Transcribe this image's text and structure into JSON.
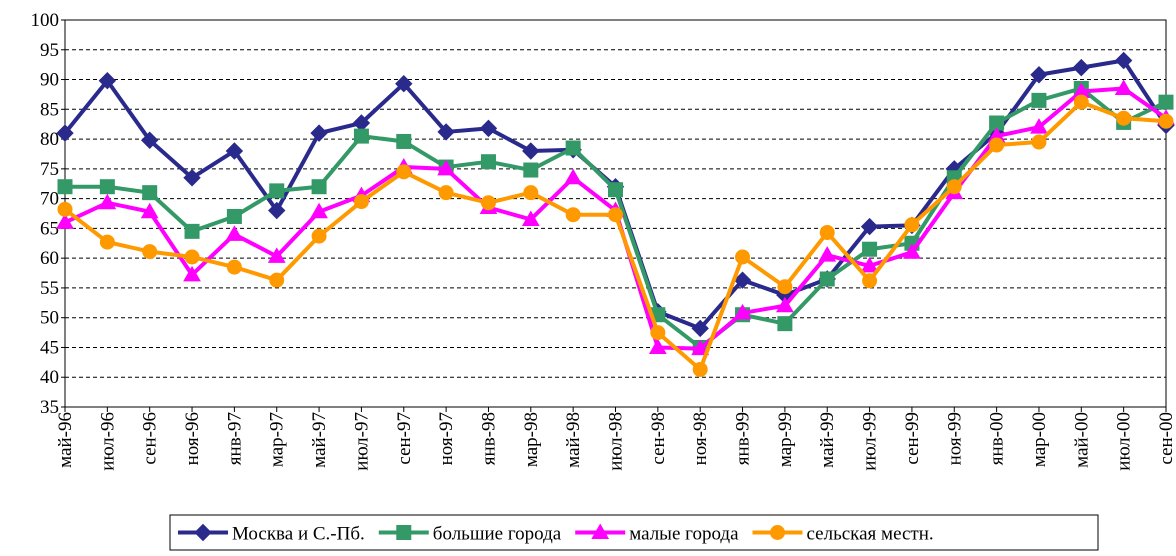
{
  "chart_data": {
    "type": "line",
    "categories": [
      "май-96",
      "июл-96",
      "сен-96",
      "ноя-96",
      "янв-97",
      "мар-97",
      "май-97",
      "июл-97",
      "сен-97",
      "ноя-97",
      "янв-98",
      "мар-98",
      "май-98",
      "июл-98",
      "сен-98",
      "ноя-98",
      "янв-99",
      "мар-99",
      "май-99",
      "июл-99",
      "сен-99",
      "ноя-99",
      "янв-00",
      "мар-00",
      "май-00",
      "июл-00",
      "сен-00"
    ],
    "series": [
      {
        "name": "Москва и С.-Пб.",
        "color": "#2a2a8c",
        "marker": "diamond",
        "values": [
          81,
          89.8,
          79.8,
          73.5,
          78,
          68,
          81,
          82.7,
          89.3,
          81.2,
          81.8,
          78,
          78.2,
          72,
          51,
          48.2,
          56.3,
          53.8,
          56.5,
          65.3,
          65.5,
          75,
          81,
          90.8,
          92,
          93.2,
          82.3
        ]
      },
      {
        "name": "большие города",
        "color": "#339966",
        "marker": "square",
        "values": [
          72,
          72,
          71,
          64.5,
          67,
          71.3,
          72,
          80.5,
          79.6,
          75.3,
          76.2,
          74.8,
          78.5,
          71.5,
          50.5,
          45,
          50.5,
          49,
          56.5,
          61.5,
          62.5,
          73.5,
          82.7,
          86.5,
          88.5,
          82.8,
          86.2
        ]
      },
      {
        "name": "малые города",
        "color": "#ff00ff",
        "marker": "triangle",
        "values": [
          66,
          69.3,
          67.8,
          57.2,
          64,
          60.3,
          67.8,
          70.5,
          75.3,
          75,
          68.5,
          66.5,
          73.5,
          68,
          45,
          44.8,
          50.8,
          52,
          60.5,
          58.7,
          61,
          71,
          80.5,
          82,
          88,
          88.5,
          83.5
        ]
      },
      {
        "name": "сельская местн.",
        "color": "#ff9900",
        "marker": "circle",
        "values": [
          68.2,
          62.7,
          61.1,
          60.2,
          58.5,
          56.3,
          63.7,
          69.5,
          74.5,
          71,
          69.3,
          71,
          67.3,
          67.3,
          47.5,
          41.3,
          60.2,
          55.2,
          64.3,
          56.2,
          65.6,
          72,
          79,
          79.5,
          86.2,
          83.5,
          83
        ]
      }
    ],
    "ylim": [
      35,
      100
    ],
    "yticks": [
      35,
      40,
      45,
      50,
      55,
      60,
      65,
      70,
      75,
      80,
      85,
      90,
      95,
      100
    ],
    "grid": true,
    "legend": "bottom"
  }
}
